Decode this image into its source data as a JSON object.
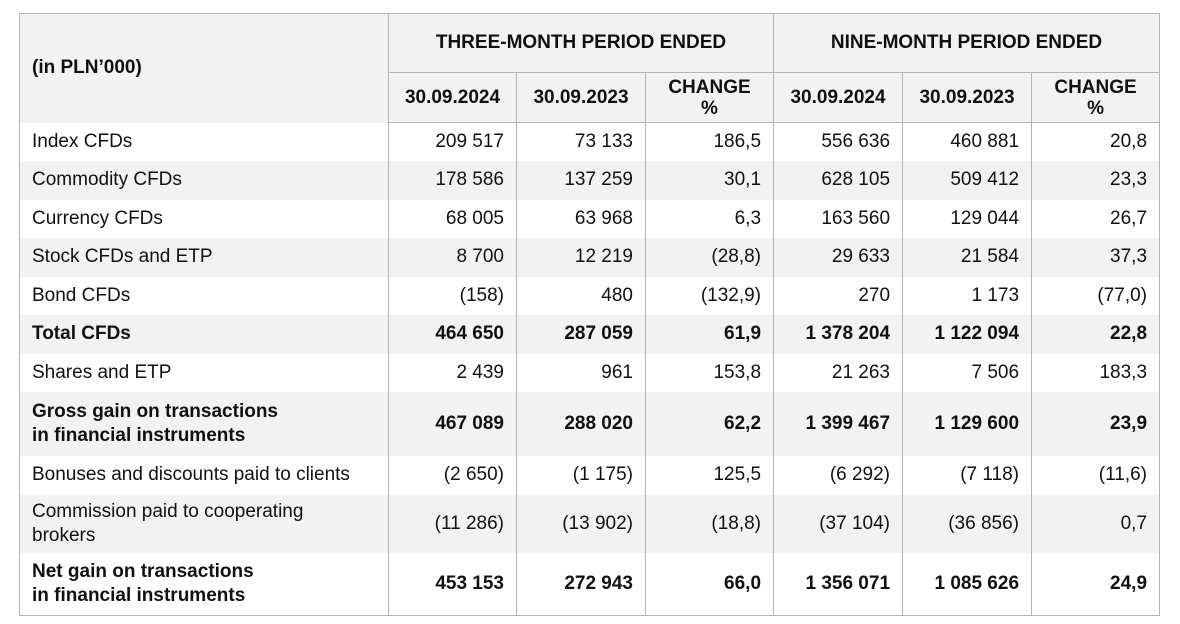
{
  "header": {
    "unit_label": "(in PLN’000)",
    "groups": [
      "THREE-MONTH PERIOD ENDED",
      "NINE-MONTH PERIOD ENDED"
    ],
    "columns": [
      "30.09.2024",
      "30.09.2023",
      "CHANGE %",
      "30.09.2024",
      "30.09.2023",
      "CHANGE %"
    ]
  },
  "rows": [
    {
      "label": "Index CFDs",
      "values": [
        "209 517",
        "73 133",
        "186,5",
        "556 636",
        "460 881",
        "20,8"
      ],
      "bold": false
    },
    {
      "label": "Commodity CFDs",
      "values": [
        "178 586",
        "137 259",
        "30,1",
        "628 105",
        "509 412",
        "23,3"
      ],
      "bold": false
    },
    {
      "label": "Currency CFDs",
      "values": [
        "68 005",
        "63 968",
        "6,3",
        "163 560",
        "129 044",
        "26,7"
      ],
      "bold": false
    },
    {
      "label": "Stock CFDs and ETP",
      "values": [
        "8 700",
        "12 219",
        "(28,8)",
        "29 633",
        "21 584",
        "37,3"
      ],
      "bold": false
    },
    {
      "label": "Bond CFDs",
      "values": [
        "(158)",
        "480",
        "(132,9)",
        "270",
        "1 173",
        "(77,0)"
      ],
      "bold": false
    },
    {
      "label": "Total CFDs",
      "values": [
        "464 650",
        "287 059",
        "61,9",
        "1 378 204",
        "1 122 094",
        "22,8"
      ],
      "bold": true
    },
    {
      "label": "Shares and ETP",
      "values": [
        "2 439",
        "961",
        "153,8",
        "21 263",
        "7 506",
        "183,3"
      ],
      "bold": false
    },
    {
      "label_lines": [
        "Gross gain on transactions",
        "in financial instruments"
      ],
      "values": [
        "467 089",
        "288 020",
        "62,2",
        "1 399 467",
        "1 129 600",
        "23,9"
      ],
      "bold": true
    },
    {
      "label": "Bonuses and discounts paid to clients",
      "values": [
        "(2 650)",
        "(1 175)",
        "125,5",
        "(6 292)",
        "(7 118)",
        "(11,6)"
      ],
      "bold": false
    },
    {
      "label_lines": [
        "Commission paid to cooperating",
        "brokers"
      ],
      "values": [
        "(11 286)",
        "(13 902)",
        "(18,8)",
        "(37 104)",
        "(36 856)",
        "0,7"
      ],
      "bold": false
    },
    {
      "label_lines": [
        "Net gain on transactions",
        "in financial instruments"
      ],
      "values": [
        "453 153",
        "272 943",
        "66,0",
        "1 356 071",
        "1 085 626",
        "24,9"
      ],
      "bold": true
    }
  ]
}
